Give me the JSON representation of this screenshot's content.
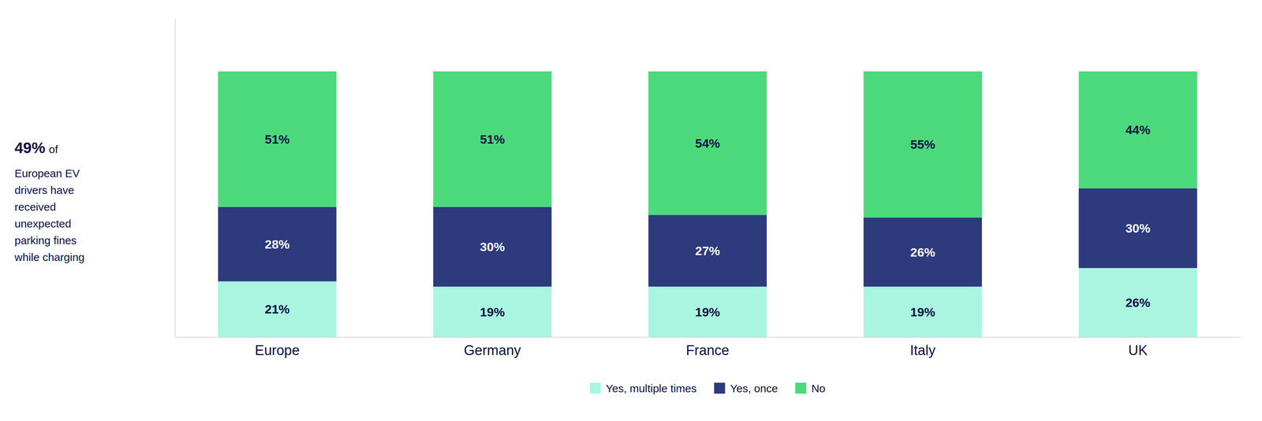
{
  "chart_data": {
    "type": "bar",
    "stacked": true,
    "data_labels": true,
    "legend": "bottom",
    "tick_labels": "x",
    "categories": [
      "Europe",
      "Germany",
      "France",
      "Italy",
      "UK"
    ],
    "ylim": [
      0,
      120
    ],
    "series": [
      {
        "name": "Yes, multiple times",
        "color": "#aaf5e0",
        "values": [
          21,
          19,
          19,
          19,
          26
        ],
        "value_labels": [
          "21%",
          "19%",
          "19%",
          "19%",
          "26%"
        ]
      },
      {
        "name": "Yes, once",
        "color": "#2d3a7c",
        "values": [
          28,
          30,
          27,
          26,
          30
        ],
        "value_labels": [
          "28%",
          "30%",
          "27%",
          "26%",
          "30%"
        ]
      },
      {
        "name": "No",
        "color": "#4cd97b",
        "values": [
          51,
          51,
          54,
          55,
          44
        ],
        "value_labels": [
          "51%",
          "51%",
          "54%",
          "55%",
          "44%"
        ]
      }
    ],
    "annotations": [
      "49%",
      "of",
      "European EV",
      "drivers have",
      "received",
      "unexpected",
      "parking fines",
      "while charging"
    ]
  }
}
